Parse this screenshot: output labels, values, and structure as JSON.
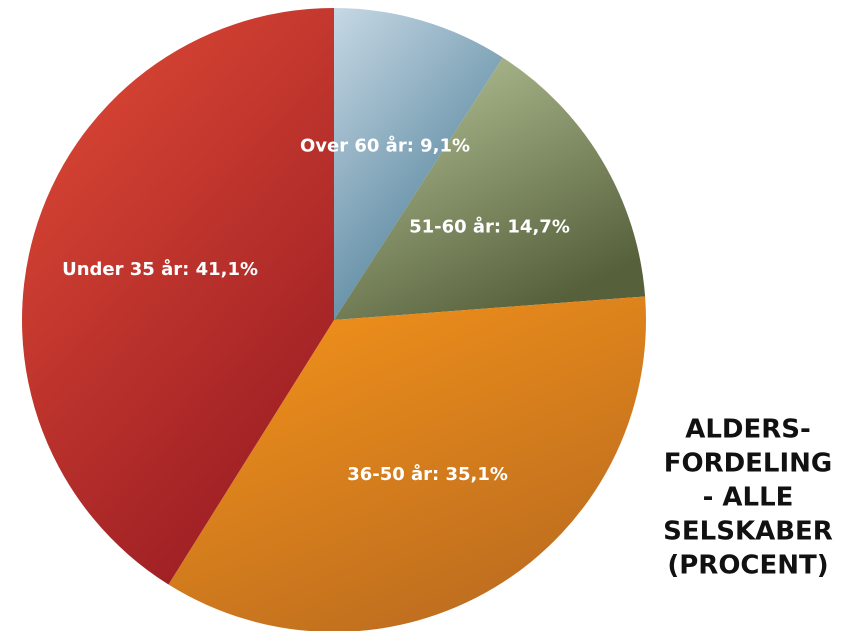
{
  "chart_data": {
    "type": "pie",
    "title_lines": [
      "ALDERS-",
      "FORDELING",
      "- ALLE",
      "SELSKABER",
      "(PROCENT)"
    ],
    "categories": [
      "Over 60 år: 9,1%",
      "51-60 år: 14,7%",
      "36-50 år: 35,1%",
      "Under 35 år: 41,1%"
    ],
    "values": [
      9.1,
      14.7,
      35.1,
      41.1
    ],
    "colors": [
      [
        "#c6d8e4",
        "#4a7c96"
      ],
      [
        "#bcc99c",
        "#56613c"
      ],
      [
        "#f7951a",
        "#bd6d1f"
      ],
      [
        "#e34c36",
        "#9c1e24"
      ]
    ]
  }
}
